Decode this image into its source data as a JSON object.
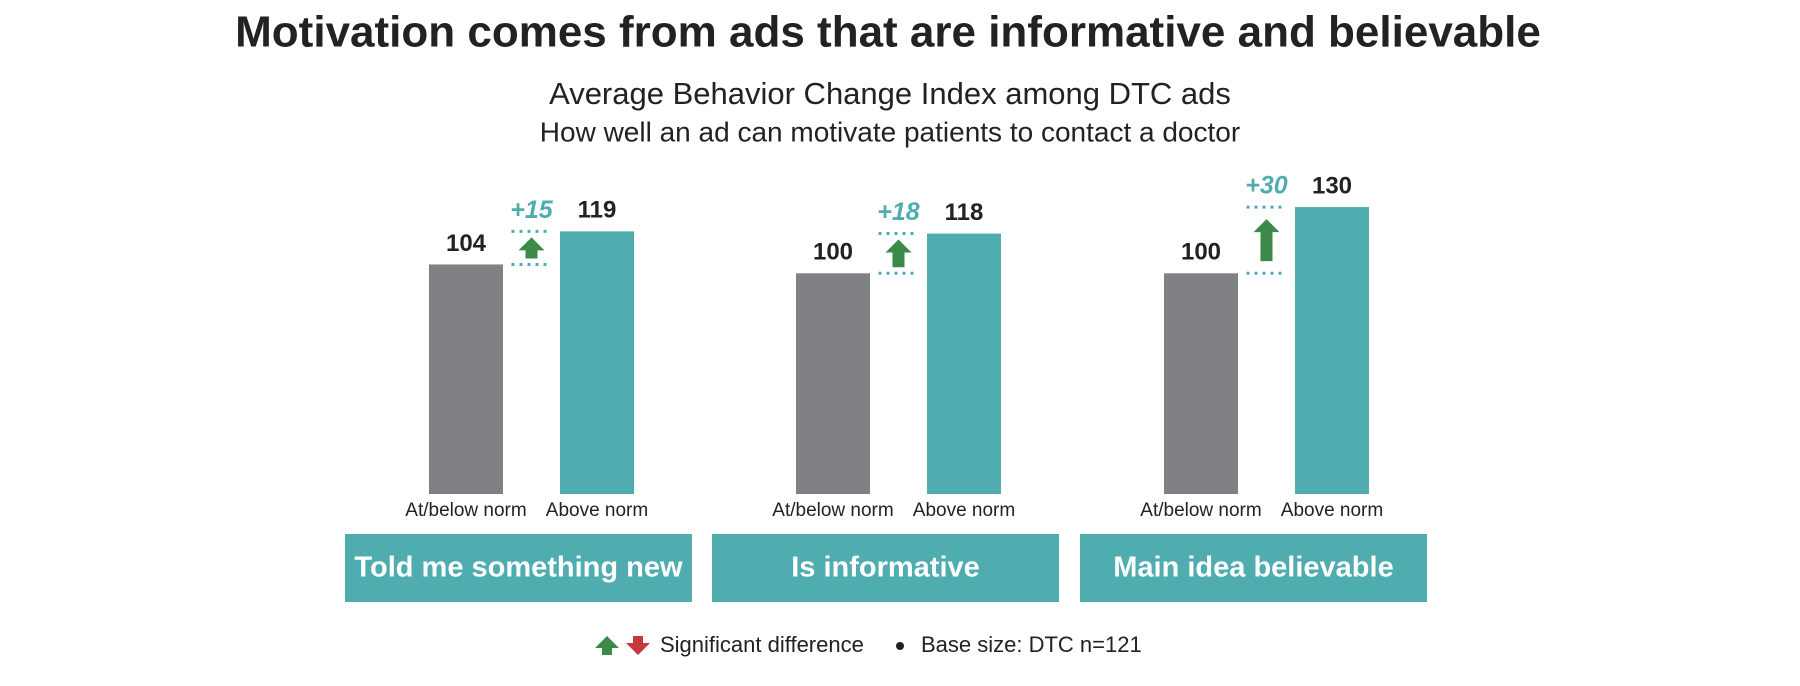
{
  "header": {
    "title": "Motivation comes from ads that are informative and believable",
    "subtitle": [
      "Average Behavior Change Index among DTC ads",
      "How well an ad can motivate patients to contact a doctor"
    ]
  },
  "chart_data": [
    {
      "type": "bar",
      "title": "Told me something new",
      "categories": [
        "At/below norm",
        "Above norm"
      ],
      "values": [
        104,
        119
      ],
      "colors": [
        "#808184",
        "#4fadb0"
      ],
      "difference_label": "+15",
      "ylim": [
        0,
        140
      ]
    },
    {
      "type": "bar",
      "title": "Is informative",
      "categories": [
        "At/below norm",
        "Above norm"
      ],
      "values": [
        100,
        118
      ],
      "colors": [
        "#808184",
        "#4fadb0"
      ],
      "difference_label": "+18",
      "ylim": [
        0,
        140
      ]
    },
    {
      "type": "bar",
      "title": "Main idea believable",
      "categories": [
        "At/below norm",
        "Above norm"
      ],
      "values": [
        100,
        130
      ],
      "colors": [
        "#808184",
        "#4fadb0"
      ],
      "difference_label": "+30",
      "ylim": [
        0,
        140
      ]
    }
  ],
  "footer": {
    "legend_label": "Significant difference",
    "base_size": "Base size: DTC n=121"
  }
}
